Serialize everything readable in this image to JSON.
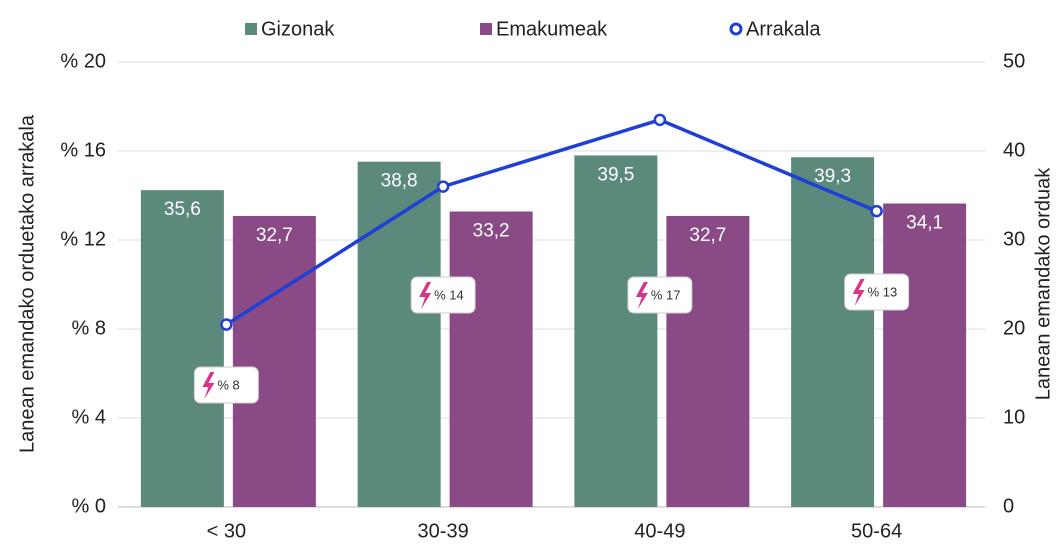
{
  "chart_data": {
    "type": "bar",
    "categories": [
      "< 30",
      "30-39",
      "40-49",
      "50-64"
    ],
    "series": [
      {
        "name": "Gizonak",
        "color": "#5b8a7d",
        "axis": "y2",
        "values": [
          35.6,
          38.8,
          39.5,
          39.3
        ],
        "value_labels": [
          "35,6",
          "38,8",
          "39,5",
          "39,3"
        ]
      },
      {
        "name": "Emakumeak",
        "color": "#8a4a86",
        "axis": "y2",
        "values": [
          32.7,
          33.2,
          32.7,
          34.1
        ],
        "value_labels": [
          "32,7",
          "33,2",
          "32,7",
          "34,1"
        ]
      },
      {
        "name": "Arrakala",
        "color": "#1f3fd6",
        "type": "line",
        "values": [
          8.2,
          14.4,
          17.4,
          13.3
        ],
        "value_labels": [
          "% 8",
          "% 14",
          "% 17",
          "% 13"
        ]
      }
    ],
    "ylabel": "Lanean emandako orduetako arrakala",
    "y2label": "Lanean emandako orduak",
    "ylim": [
      0,
      20
    ],
    "yticks": [
      {
        "value": 0,
        "label": "% 0"
      },
      {
        "value": 4,
        "label": "% 4"
      },
      {
        "value": 8,
        "label": "% 8"
      },
      {
        "value": 12,
        "label": "% 12"
      },
      {
        "value": 16,
        "label": "% 16"
      },
      {
        "value": 20,
        "label": "% 20"
      }
    ],
    "y2lim": [
      0,
      50
    ],
    "y2ticks": [
      0,
      10,
      20,
      30,
      40,
      50
    ],
    "grid": true,
    "legend": "top"
  }
}
